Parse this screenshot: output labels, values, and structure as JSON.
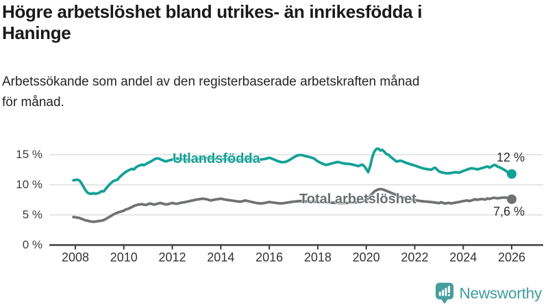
{
  "header": {
    "title_lines": [
      "Högre arbetslöshet bland utrikes- än inrikesfödda i",
      "Haninge"
    ],
    "subtitle_lines": [
      "Arbetssökande som andel av den registerbaserade arbetskraften månad",
      "för månad."
    ]
  },
  "footer": {
    "brand": "Newsworthy"
  },
  "colors": {
    "accent_teal": "#13a095",
    "series_gray": "#6f7173",
    "gridline": "#d8d8d8",
    "axis": "#3a3a3a",
    "logo_teal": "#469e9d"
  },
  "chart_data": {
    "type": "line",
    "title": "Högre arbetslöshet bland utrikes- än inrikesfödda i Haninge",
    "subtitle": "Arbetssökande som andel av den registerbaserade arbetskraften månad för månad.",
    "xlabel": "",
    "ylabel": "",
    "grid": true,
    "legend_position": "inline-labels",
    "xlim": [
      2007.9,
      2026.1
    ],
    "ylim": [
      0,
      16.5
    ],
    "x_tick_labels": [
      "2008",
      "2010",
      "2012",
      "2014",
      "2016",
      "2018",
      "2020",
      "2022",
      "2024",
      "2026"
    ],
    "y_ticks": [
      {
        "label": "0 %",
        "value": 0
      },
      {
        "label": "5 %",
        "value": 5
      },
      {
        "label": "10 %",
        "value": 10
      },
      {
        "label": "15 %",
        "value": 15
      }
    ],
    "series": [
      {
        "name": "Utlandsfödda",
        "color": "#13a095",
        "end_label": "12 %",
        "points": [
          [
            2007.92,
            10.75
          ],
          [
            2008.0,
            10.8
          ],
          [
            2008.08,
            10.85
          ],
          [
            2008.17,
            10.7
          ],
          [
            2008.25,
            10.3
          ],
          [
            2008.33,
            9.7
          ],
          [
            2008.42,
            9.1
          ],
          [
            2008.5,
            8.7
          ],
          [
            2008.58,
            8.55
          ],
          [
            2008.67,
            8.5
          ],
          [
            2008.75,
            8.6
          ],
          [
            2008.83,
            8.5
          ],
          [
            2008.92,
            8.6
          ],
          [
            2009.0,
            8.7
          ],
          [
            2009.08,
            8.95
          ],
          [
            2009.17,
            8.9
          ],
          [
            2009.25,
            9.3
          ],
          [
            2009.33,
            9.7
          ],
          [
            2009.42,
            10.1
          ],
          [
            2009.5,
            10.4
          ],
          [
            2009.58,
            10.65
          ],
          [
            2009.67,
            10.75
          ],
          [
            2009.75,
            10.9
          ],
          [
            2009.83,
            11.3
          ],
          [
            2009.92,
            11.6
          ],
          [
            2010.0,
            11.9
          ],
          [
            2010.08,
            12.15
          ],
          [
            2010.17,
            12.35
          ],
          [
            2010.25,
            12.5
          ],
          [
            2010.33,
            12.65
          ],
          [
            2010.42,
            12.55
          ],
          [
            2010.5,
            12.9
          ],
          [
            2010.58,
            13.1
          ],
          [
            2010.67,
            13.25
          ],
          [
            2010.75,
            13.35
          ],
          [
            2010.83,
            13.25
          ],
          [
            2010.92,
            13.45
          ],
          [
            2011.0,
            13.65
          ],
          [
            2011.08,
            13.8
          ],
          [
            2011.17,
            14.0
          ],
          [
            2011.25,
            14.2
          ],
          [
            2011.33,
            14.35
          ],
          [
            2011.42,
            14.4
          ],
          [
            2011.5,
            14.25
          ],
          [
            2011.58,
            14.1
          ],
          [
            2011.67,
            13.95
          ],
          [
            2011.75,
            13.9
          ],
          [
            2011.83,
            14.0
          ],
          [
            2011.92,
            14.1
          ],
          [
            2012.0,
            14.2
          ],
          [
            2012.17,
            14.35
          ],
          [
            2012.33,
            14.3
          ],
          [
            2012.5,
            14.2
          ],
          [
            2012.67,
            14.1
          ],
          [
            2012.83,
            14.15
          ],
          [
            2013.0,
            14.25
          ],
          [
            2013.17,
            14.3
          ],
          [
            2013.33,
            14.4
          ],
          [
            2013.5,
            14.45
          ],
          [
            2013.67,
            14.35
          ],
          [
            2013.83,
            14.25
          ],
          [
            2014.0,
            14.3
          ],
          [
            2014.17,
            14.25
          ],
          [
            2014.33,
            14.2
          ],
          [
            2014.5,
            14.15
          ],
          [
            2014.67,
            14.05
          ],
          [
            2014.83,
            14.1
          ],
          [
            2015.0,
            14.2
          ],
          [
            2015.17,
            14.3
          ],
          [
            2015.33,
            14.25
          ],
          [
            2015.5,
            14.15
          ],
          [
            2015.67,
            14.2
          ],
          [
            2015.83,
            14.3
          ],
          [
            2016.0,
            14.5
          ],
          [
            2016.17,
            14.25
          ],
          [
            2016.33,
            13.95
          ],
          [
            2016.5,
            13.75
          ],
          [
            2016.67,
            13.8
          ],
          [
            2016.83,
            14.1
          ],
          [
            2017.0,
            14.55
          ],
          [
            2017.17,
            14.9
          ],
          [
            2017.33,
            14.95
          ],
          [
            2017.5,
            14.75
          ],
          [
            2017.67,
            14.6
          ],
          [
            2017.83,
            14.4
          ],
          [
            2018.0,
            13.9
          ],
          [
            2018.17,
            13.55
          ],
          [
            2018.33,
            13.3
          ],
          [
            2018.5,
            13.45
          ],
          [
            2018.67,
            13.65
          ],
          [
            2018.83,
            13.8
          ],
          [
            2019.0,
            13.6
          ],
          [
            2019.17,
            13.5
          ],
          [
            2019.33,
            13.45
          ],
          [
            2019.5,
            13.3
          ],
          [
            2019.67,
            13.1
          ],
          [
            2019.83,
            13.35
          ],
          [
            2019.92,
            13.1
          ],
          [
            2020.0,
            12.6
          ],
          [
            2020.08,
            12.1
          ],
          [
            2020.17,
            13.2
          ],
          [
            2020.25,
            14.6
          ],
          [
            2020.33,
            15.5
          ],
          [
            2020.42,
            15.95
          ],
          [
            2020.5,
            16.0
          ],
          [
            2020.58,
            15.7
          ],
          [
            2020.67,
            15.8
          ],
          [
            2020.75,
            15.45
          ],
          [
            2020.83,
            15.1
          ],
          [
            2020.92,
            15.0
          ],
          [
            2021.0,
            14.65
          ],
          [
            2021.08,
            14.4
          ],
          [
            2021.17,
            14.1
          ],
          [
            2021.25,
            13.85
          ],
          [
            2021.33,
            13.95
          ],
          [
            2021.42,
            14.0
          ],
          [
            2021.5,
            13.9
          ],
          [
            2021.58,
            13.75
          ],
          [
            2021.67,
            13.6
          ],
          [
            2021.75,
            13.5
          ],
          [
            2021.83,
            13.4
          ],
          [
            2021.92,
            13.3
          ],
          [
            2022.0,
            13.2
          ],
          [
            2022.17,
            12.95
          ],
          [
            2022.33,
            12.75
          ],
          [
            2022.5,
            12.6
          ],
          [
            2022.67,
            12.5
          ],
          [
            2022.83,
            12.85
          ],
          [
            2022.92,
            12.55
          ],
          [
            2023.0,
            12.2
          ],
          [
            2023.17,
            12.0
          ],
          [
            2023.33,
            11.9
          ],
          [
            2023.5,
            11.95
          ],
          [
            2023.67,
            12.1
          ],
          [
            2023.83,
            12.0
          ],
          [
            2024.0,
            12.3
          ],
          [
            2024.17,
            12.55
          ],
          [
            2024.33,
            12.75
          ],
          [
            2024.5,
            12.65
          ],
          [
            2024.58,
            12.55
          ],
          [
            2024.75,
            12.75
          ],
          [
            2024.92,
            12.95
          ],
          [
            2025.0,
            13.05
          ],
          [
            2025.08,
            12.85
          ],
          [
            2025.17,
            13.05
          ],
          [
            2025.25,
            13.25
          ],
          [
            2025.33,
            13.3
          ],
          [
            2025.42,
            13.0
          ],
          [
            2025.5,
            12.9
          ],
          [
            2025.58,
            12.75
          ],
          [
            2025.67,
            12.55
          ],
          [
            2025.75,
            12.35
          ],
          [
            2025.83,
            12.1
          ],
          [
            2025.92,
            11.95
          ],
          [
            2026.0,
            11.8
          ]
        ]
      },
      {
        "name": "Total arbetslöshet",
        "color": "#6f7173",
        "end_label": "7,6 %",
        "points": [
          [
            2007.92,
            4.65
          ],
          [
            2008.0,
            4.6
          ],
          [
            2008.08,
            4.55
          ],
          [
            2008.17,
            4.5
          ],
          [
            2008.25,
            4.35
          ],
          [
            2008.33,
            4.25
          ],
          [
            2008.42,
            4.1
          ],
          [
            2008.5,
            4.05
          ],
          [
            2008.58,
            3.95
          ],
          [
            2008.67,
            3.9
          ],
          [
            2008.75,
            3.85
          ],
          [
            2008.83,
            3.9
          ],
          [
            2008.92,
            3.95
          ],
          [
            2009.0,
            4.0
          ],
          [
            2009.08,
            4.05
          ],
          [
            2009.17,
            4.15
          ],
          [
            2009.25,
            4.3
          ],
          [
            2009.33,
            4.5
          ],
          [
            2009.42,
            4.7
          ],
          [
            2009.5,
            4.9
          ],
          [
            2009.58,
            5.1
          ],
          [
            2009.67,
            5.25
          ],
          [
            2009.75,
            5.4
          ],
          [
            2009.83,
            5.5
          ],
          [
            2009.92,
            5.6
          ],
          [
            2010.0,
            5.7
          ],
          [
            2010.08,
            5.9
          ],
          [
            2010.17,
            6.0
          ],
          [
            2010.25,
            6.15
          ],
          [
            2010.33,
            6.3
          ],
          [
            2010.42,
            6.5
          ],
          [
            2010.5,
            6.6
          ],
          [
            2010.58,
            6.7
          ],
          [
            2010.67,
            6.75
          ],
          [
            2010.75,
            6.8
          ],
          [
            2010.83,
            6.7
          ],
          [
            2010.92,
            6.65
          ],
          [
            2011.0,
            6.8
          ],
          [
            2011.08,
            6.9
          ],
          [
            2011.17,
            6.8
          ],
          [
            2011.25,
            6.7
          ],
          [
            2011.33,
            6.8
          ],
          [
            2011.42,
            6.9
          ],
          [
            2011.5,
            7.0
          ],
          [
            2011.58,
            6.9
          ],
          [
            2011.67,
            6.8
          ],
          [
            2011.75,
            6.75
          ],
          [
            2011.83,
            6.8
          ],
          [
            2011.92,
            6.9
          ],
          [
            2012.0,
            7.0
          ],
          [
            2012.08,
            6.9
          ],
          [
            2012.17,
            6.85
          ],
          [
            2012.25,
            6.9
          ],
          [
            2012.33,
            7.0
          ],
          [
            2012.5,
            7.1
          ],
          [
            2012.67,
            7.25
          ],
          [
            2012.83,
            7.4
          ],
          [
            2013.0,
            7.55
          ],
          [
            2013.17,
            7.65
          ],
          [
            2013.25,
            7.7
          ],
          [
            2013.42,
            7.6
          ],
          [
            2013.58,
            7.4
          ],
          [
            2013.75,
            7.55
          ],
          [
            2013.92,
            7.65
          ],
          [
            2014.0,
            7.7
          ],
          [
            2014.17,
            7.55
          ],
          [
            2014.33,
            7.45
          ],
          [
            2014.5,
            7.35
          ],
          [
            2014.67,
            7.25
          ],
          [
            2014.83,
            7.2
          ],
          [
            2015.0,
            7.4
          ],
          [
            2015.17,
            7.25
          ],
          [
            2015.33,
            7.1
          ],
          [
            2015.5,
            6.95
          ],
          [
            2015.67,
            6.9
          ],
          [
            2015.83,
            7.0
          ],
          [
            2016.0,
            7.15
          ],
          [
            2016.17,
            7.05
          ],
          [
            2016.33,
            6.95
          ],
          [
            2016.5,
            6.9
          ],
          [
            2016.67,
            7.0
          ],
          [
            2016.83,
            7.1
          ],
          [
            2017.0,
            7.2
          ],
          [
            2017.25,
            7.3
          ],
          [
            2017.5,
            7.25
          ],
          [
            2017.75,
            7.2
          ],
          [
            2018.0,
            7.15
          ],
          [
            2018.25,
            7.1
          ],
          [
            2018.5,
            7.05
          ],
          [
            2018.75,
            7.0
          ],
          [
            2019.0,
            6.95
          ],
          [
            2019.25,
            7.0
          ],
          [
            2019.5,
            7.05
          ],
          [
            2019.75,
            7.15
          ],
          [
            2020.0,
            7.4
          ],
          [
            2020.17,
            8.2
          ],
          [
            2020.33,
            8.9
          ],
          [
            2020.5,
            9.25
          ],
          [
            2020.58,
            9.3
          ],
          [
            2020.67,
            9.25
          ],
          [
            2020.83,
            9.0
          ],
          [
            2021.0,
            8.7
          ],
          [
            2021.25,
            8.3
          ],
          [
            2021.5,
            7.9
          ],
          [
            2021.75,
            7.6
          ],
          [
            2022.0,
            7.45
          ],
          [
            2022.25,
            7.3
          ],
          [
            2022.5,
            7.2
          ],
          [
            2022.75,
            7.1
          ],
          [
            2022.92,
            7.0
          ],
          [
            2023.0,
            6.95
          ],
          [
            2023.08,
            7.1
          ],
          [
            2023.25,
            6.9
          ],
          [
            2023.42,
            7.0
          ],
          [
            2023.5,
            6.9
          ],
          [
            2023.67,
            7.05
          ],
          [
            2023.83,
            7.15
          ],
          [
            2024.0,
            7.3
          ],
          [
            2024.17,
            7.4
          ],
          [
            2024.25,
            7.3
          ],
          [
            2024.42,
            7.5
          ],
          [
            2024.5,
            7.6
          ],
          [
            2024.58,
            7.5
          ],
          [
            2024.75,
            7.65
          ],
          [
            2024.92,
            7.55
          ],
          [
            2025.0,
            7.75
          ],
          [
            2025.08,
            7.65
          ],
          [
            2025.25,
            7.85
          ],
          [
            2025.42,
            7.75
          ],
          [
            2025.58,
            7.85
          ],
          [
            2025.75,
            7.9
          ],
          [
            2025.83,
            7.8
          ],
          [
            2025.92,
            7.7
          ],
          [
            2026.0,
            7.6
          ]
        ]
      }
    ]
  }
}
